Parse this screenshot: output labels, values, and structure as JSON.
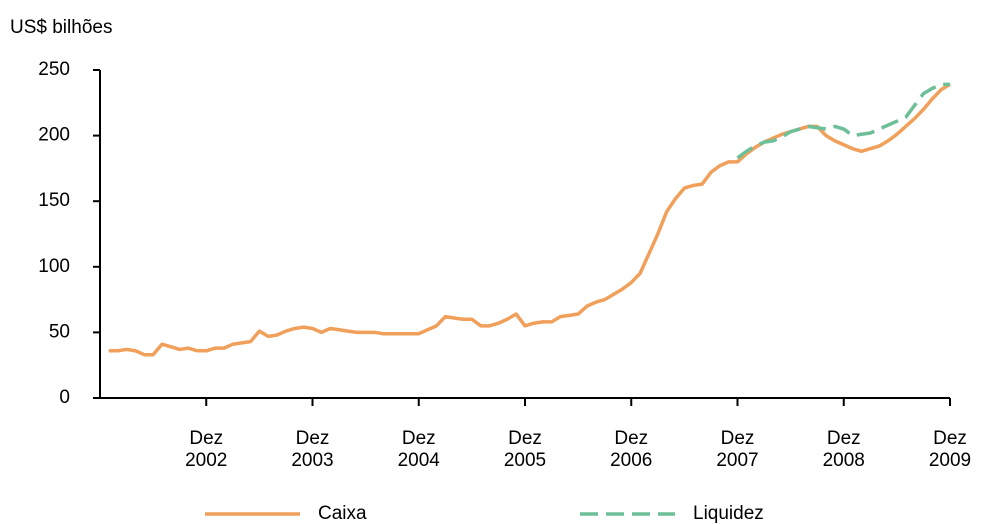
{
  "chart_data": {
    "type": "line",
    "y_label": "US$ bilhões",
    "x": [
      "2002-01",
      "2002-02",
      "2002-03",
      "2002-04",
      "2002-05",
      "2002-06",
      "2002-07",
      "2002-08",
      "2002-09",
      "2002-10",
      "2002-11",
      "2002-12",
      "2003-01",
      "2003-02",
      "2003-03",
      "2003-04",
      "2003-05",
      "2003-06",
      "2003-07",
      "2003-08",
      "2003-09",
      "2003-10",
      "2003-11",
      "2003-12",
      "2004-01",
      "2004-02",
      "2004-03",
      "2004-04",
      "2004-05",
      "2004-06",
      "2004-07",
      "2004-08",
      "2004-09",
      "2004-10",
      "2004-11",
      "2004-12",
      "2005-01",
      "2005-02",
      "2005-03",
      "2005-04",
      "2005-05",
      "2005-06",
      "2005-07",
      "2005-08",
      "2005-09",
      "2005-10",
      "2005-11",
      "2005-12",
      "2006-01",
      "2006-02",
      "2006-03",
      "2006-04",
      "2006-05",
      "2006-06",
      "2006-07",
      "2006-08",
      "2006-09",
      "2006-10",
      "2006-11",
      "2006-12",
      "2007-01",
      "2007-02",
      "2007-03",
      "2007-04",
      "2007-05",
      "2007-06",
      "2007-07",
      "2007-08",
      "2007-09",
      "2007-10",
      "2007-11",
      "2007-12",
      "2008-01",
      "2008-02",
      "2008-03",
      "2008-04",
      "2008-05",
      "2008-06",
      "2008-07",
      "2008-08",
      "2008-09",
      "2008-10",
      "2008-11",
      "2008-12",
      "2009-01",
      "2009-02",
      "2009-03",
      "2009-04",
      "2009-05",
      "2009-06",
      "2009-07",
      "2009-08",
      "2009-09",
      "2009-10",
      "2009-11",
      "2009-12"
    ],
    "series": [
      {
        "name": "Caixa",
        "color": "#f0a05a",
        "dash": false,
        "values": [
          36,
          36,
          37,
          36,
          33,
          33,
          41,
          39,
          37,
          38,
          36,
          36,
          38,
          38,
          41,
          42,
          43,
          51,
          47,
          48,
          51,
          53,
          54,
          53,
          50,
          53,
          52,
          51,
          50,
          50,
          50,
          49,
          49,
          49,
          49,
          49,
          52,
          55,
          62,
          61,
          60,
          60,
          55,
          55,
          57,
          60,
          64,
          55,
          57,
          58,
          58,
          62,
          63,
          64,
          70,
          73,
          75,
          79,
          83,
          88,
          95,
          110,
          125,
          142,
          152,
          160,
          162,
          163,
          172,
          177,
          180,
          180,
          186,
          191,
          195,
          198,
          201,
          203,
          205,
          207,
          207,
          200,
          196,
          193,
          190,
          188,
          190,
          192,
          196,
          201,
          207,
          213,
          220,
          228,
          235,
          239
        ]
      },
      {
        "name": "Liquidez",
        "color": "#6dbf98",
        "dash": true,
        "values": [
          null,
          null,
          null,
          null,
          null,
          null,
          null,
          null,
          null,
          null,
          null,
          null,
          null,
          null,
          null,
          null,
          null,
          null,
          null,
          null,
          null,
          null,
          null,
          null,
          null,
          null,
          null,
          null,
          null,
          null,
          null,
          null,
          null,
          null,
          null,
          null,
          null,
          null,
          null,
          null,
          null,
          null,
          null,
          null,
          null,
          null,
          null,
          null,
          null,
          null,
          null,
          null,
          null,
          null,
          null,
          null,
          null,
          null,
          null,
          null,
          null,
          null,
          null,
          null,
          null,
          null,
          null,
          null,
          null,
          null,
          null,
          183,
          188,
          192,
          195,
          196,
          199,
          203,
          205,
          207,
          206,
          205,
          207,
          205,
          200,
          201,
          202,
          205,
          208,
          211,
          214,
          223,
          232,
          236,
          239,
          239
        ]
      }
    ],
    "xlim": [
      "2001-12",
      "2009-12"
    ],
    "xticks": [
      {
        "value": "2002-12",
        "label": "Dez\n2002"
      },
      {
        "value": "2003-12",
        "label": "Dez\n2003"
      },
      {
        "value": "2004-12",
        "label": "Dez\n2004"
      },
      {
        "value": "2005-12",
        "label": "Dez\n2005"
      },
      {
        "value": "2006-12",
        "label": "Dez\n2006"
      },
      {
        "value": "2007-12",
        "label": "Dez\n2007"
      },
      {
        "value": "2008-12",
        "label": "Dez\n2008"
      },
      {
        "value": "2009-12",
        "label": "Dez\n2009"
      }
    ],
    "ylim": [
      0,
      250
    ],
    "yticks": [
      0,
      50,
      100,
      150,
      200,
      250
    ],
    "grid": false,
    "legend": "bottom"
  }
}
